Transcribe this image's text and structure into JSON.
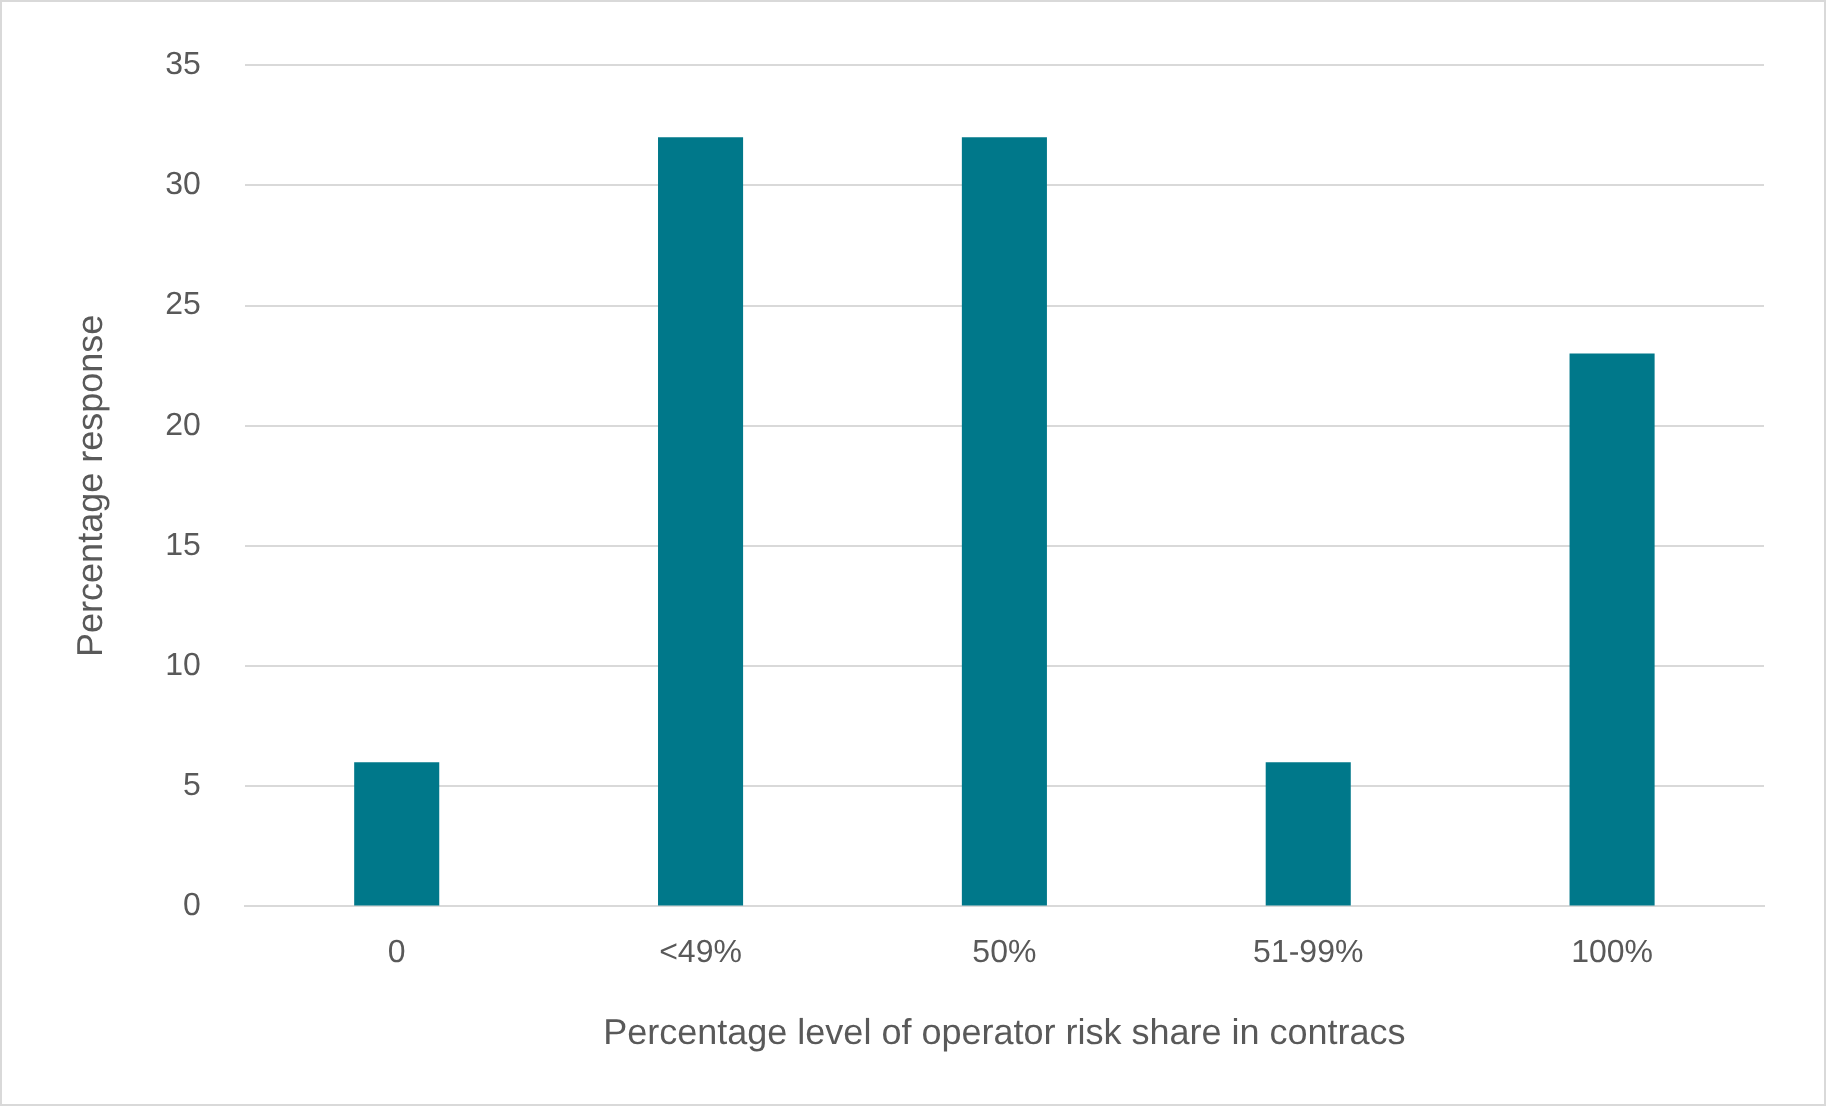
{
  "chart_data": {
    "type": "bar",
    "xlabel": "Percentage level of operator risk share in contracs",
    "ylabel": "Percentage response",
    "categories": [
      "0",
      "<49%",
      "50%",
      "51-99%",
      "100%"
    ],
    "values": [
      6,
      32,
      32,
      6,
      23
    ],
    "color": "#00788a",
    "ylim": [
      0,
      35
    ],
    "yticks": [
      0,
      5,
      10,
      15,
      20,
      25,
      30,
      35
    ],
    "grid": "y",
    "legend": false
  }
}
